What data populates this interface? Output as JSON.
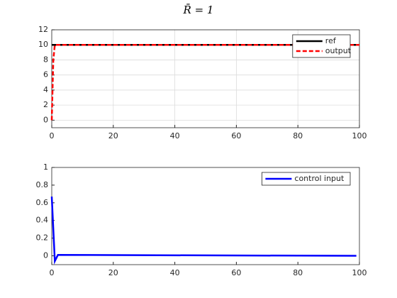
{
  "chart_data": [
    {
      "type": "line",
      "title": "R̄ = 1",
      "xlim": [
        0,
        100
      ],
      "xticks": [
        0,
        20,
        40,
        60,
        80,
        100
      ],
      "ylim": [
        -1,
        12
      ],
      "yticks": [
        0,
        2,
        4,
        6,
        8,
        10,
        12
      ],
      "grid": true,
      "legend": "northeast",
      "series": [
        {
          "name": "ref",
          "color": "#000000",
          "style": "solid",
          "x": [
            0,
            100
          ],
          "values": [
            10,
            10
          ]
        },
        {
          "name": "output",
          "color": "#ff0000",
          "style": "dashed",
          "x": [
            0,
            0.5,
            1,
            100
          ],
          "values": [
            0,
            8,
            10,
            10
          ]
        }
      ]
    },
    {
      "type": "line",
      "xlim": [
        0,
        100
      ],
      "xticks": [
        0,
        20,
        40,
        60,
        80,
        100
      ],
      "ylim": [
        -0.1,
        1
      ],
      "yticks": [
        0,
        0.2,
        0.4,
        0.6,
        0.8,
        1
      ],
      "grid": false,
      "legend": "northeast",
      "series": [
        {
          "name": "control input",
          "color": "#0000ff",
          "style": "solid",
          "x": [
            0,
            1,
            2,
            99
          ],
          "values": [
            0.67,
            -0.06,
            0.01,
            0
          ]
        }
      ]
    }
  ]
}
